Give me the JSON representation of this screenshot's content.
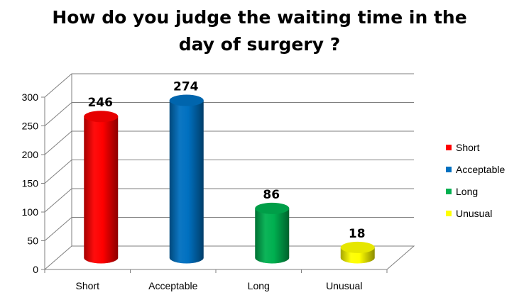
{
  "chart_data": {
    "type": "bar",
    "title_line1": "How do you judge the waiting time in the",
    "title_line2": "day of surgery ?",
    "categories": [
      "Short",
      "Acceptable",
      "Long",
      "Unusual"
    ],
    "values": [
      246,
      274,
      86,
      18
    ],
    "colors": [
      "#ff0000",
      "#0070c0",
      "#00b050",
      "#ffff00"
    ],
    "ylim": [
      0,
      300
    ],
    "yticks": [
      0,
      50,
      100,
      150,
      200,
      250,
      300
    ],
    "grid": true,
    "legend": {
      "position": "right",
      "entries": [
        "Short",
        "Acceptable",
        "Long",
        "Unusual"
      ]
    }
  }
}
